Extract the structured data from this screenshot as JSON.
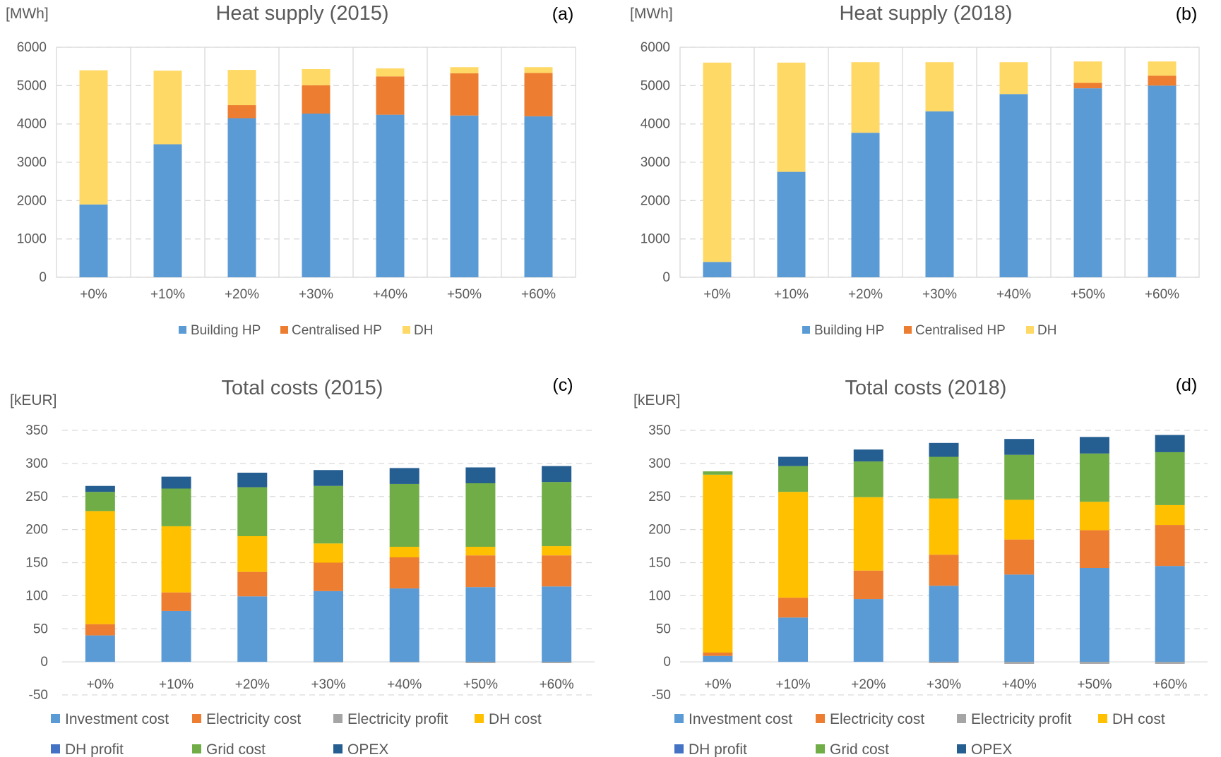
{
  "colors": {
    "building_hp": "#5b9bd5",
    "centralised_hp": "#ed7d31",
    "dh": "#ffd966",
    "investment": "#5b9bd5",
    "electricity_cost": "#ed7d31",
    "electricity_profit": "#a5a5a5",
    "dh_cost": "#ffc000",
    "dh_profit": "#4472c4",
    "grid_cost": "#70ad47",
    "opex": "#255e91"
  },
  "chart_data": [
    {
      "type": "bar",
      "stacked": true,
      "title": "Heat supply (2015)",
      "panel": "(a)",
      "unit": "[MWh]",
      "ylim": [
        0,
        6000
      ],
      "yticks": [
        0,
        1000,
        2000,
        3000,
        4000,
        5000,
        6000
      ],
      "categories": [
        "+0%",
        "+10%",
        "+20%",
        "+30%",
        "+40%",
        "+50%",
        "+60%"
      ],
      "grid": true,
      "legend_position": "bottom",
      "series": [
        {
          "name": "Building HP",
          "color_key": "building_hp",
          "values": [
            1900,
            3470,
            4150,
            4270,
            4240,
            4220,
            4200
          ]
        },
        {
          "name": "Centralised HP",
          "color_key": "centralised_hp",
          "values": [
            0,
            0,
            340,
            740,
            1000,
            1100,
            1130
          ]
        },
        {
          "name": "DH",
          "color_key": "dh",
          "values": [
            3500,
            1920,
            920,
            420,
            210,
            160,
            150
          ]
        }
      ]
    },
    {
      "type": "bar",
      "stacked": true,
      "title": "Heat supply (2018)",
      "panel": "(b)",
      "unit": "[MWh]",
      "ylim": [
        0,
        6000
      ],
      "yticks": [
        0,
        1000,
        2000,
        3000,
        4000,
        5000,
        6000
      ],
      "categories": [
        "+0%",
        "+10%",
        "+20%",
        "+30%",
        "+40%",
        "+50%",
        "+60%"
      ],
      "grid": true,
      "legend_position": "bottom",
      "series": [
        {
          "name": "Building HP",
          "color_key": "building_hp",
          "values": [
            400,
            2750,
            3770,
            4330,
            4780,
            4930,
            5000
          ]
        },
        {
          "name": "Centralised HP",
          "color_key": "centralised_hp",
          "values": [
            0,
            0,
            0,
            0,
            0,
            140,
            260
          ]
        },
        {
          "name": "DH",
          "color_key": "dh",
          "values": [
            5200,
            2850,
            1840,
            1280,
            830,
            560,
            370
          ]
        }
      ]
    },
    {
      "type": "bar",
      "stacked": true,
      "title": "Total costs (2015)",
      "panel": "(c)",
      "unit": "[kEUR]",
      "ylim": [
        -50,
        350
      ],
      "yticks": [
        -50,
        0,
        50,
        100,
        150,
        200,
        250,
        300,
        350
      ],
      "categories": [
        "+0%",
        "+10%",
        "+20%",
        "+30%",
        "+40%",
        "+50%",
        "+60%"
      ],
      "grid": true,
      "legend_position": "bottom",
      "series": [
        {
          "name": "Investment cost",
          "color_key": "investment",
          "values": [
            40,
            77,
            99,
            107,
            111,
            113,
            114
          ]
        },
        {
          "name": "Electricity cost",
          "color_key": "electricity_cost",
          "values": [
            17,
            28,
            37,
            43,
            47,
            48,
            47
          ]
        },
        {
          "name": "Electricity profit",
          "color_key": "electricity_profit",
          "values": [
            0,
            0,
            0,
            -1,
            -1,
            -2,
            -2
          ]
        },
        {
          "name": "DH cost",
          "color_key": "dh_cost",
          "values": [
            171,
            100,
            54,
            29,
            16,
            13,
            14
          ]
        },
        {
          "name": "DH profit",
          "color_key": "dh_profit",
          "values": [
            0,
            0,
            0,
            0,
            0,
            0,
            0
          ]
        },
        {
          "name": "Grid cost",
          "color_key": "grid_cost",
          "values": [
            29,
            57,
            74,
            87,
            95,
            96,
            97
          ]
        },
        {
          "name": "OPEX",
          "color_key": "opex",
          "values": [
            9,
            18,
            22,
            24,
            24,
            24,
            24
          ]
        }
      ]
    },
    {
      "type": "bar",
      "stacked": true,
      "title": "Total costs (2018)",
      "panel": "(d)",
      "unit": "[kEUR]",
      "ylim": [
        -50,
        350
      ],
      "yticks": [
        -50,
        0,
        50,
        100,
        150,
        200,
        250,
        300,
        350
      ],
      "categories": [
        "+0%",
        "+10%",
        "+20%",
        "+30%",
        "+40%",
        "+50%",
        "+60%"
      ],
      "grid": true,
      "legend_position": "bottom",
      "series": [
        {
          "name": "Investment cost",
          "color_key": "investment",
          "values": [
            9,
            67,
            95,
            115,
            132,
            142,
            145
          ]
        },
        {
          "name": "Electricity cost",
          "color_key": "electricity_cost",
          "values": [
            5,
            30,
            43,
            47,
            53,
            57,
            62
          ]
        },
        {
          "name": "Electricity profit",
          "color_key": "electricity_profit",
          "values": [
            0,
            0,
            0,
            -2,
            -3,
            -3,
            -3
          ]
        },
        {
          "name": "DH cost",
          "color_key": "dh_cost",
          "values": [
            269,
            160,
            111,
            85,
            60,
            43,
            30
          ]
        },
        {
          "name": "DH profit",
          "color_key": "dh_profit",
          "values": [
            0,
            0,
            0,
            0,
            0,
            0,
            0
          ]
        },
        {
          "name": "Grid cost",
          "color_key": "grid_cost",
          "values": [
            5,
            39,
            54,
            63,
            68,
            73,
            80
          ]
        },
        {
          "name": "OPEX",
          "color_key": "opex",
          "values": [
            0,
            14,
            18,
            21,
            24,
            25,
            26
          ]
        }
      ]
    }
  ]
}
